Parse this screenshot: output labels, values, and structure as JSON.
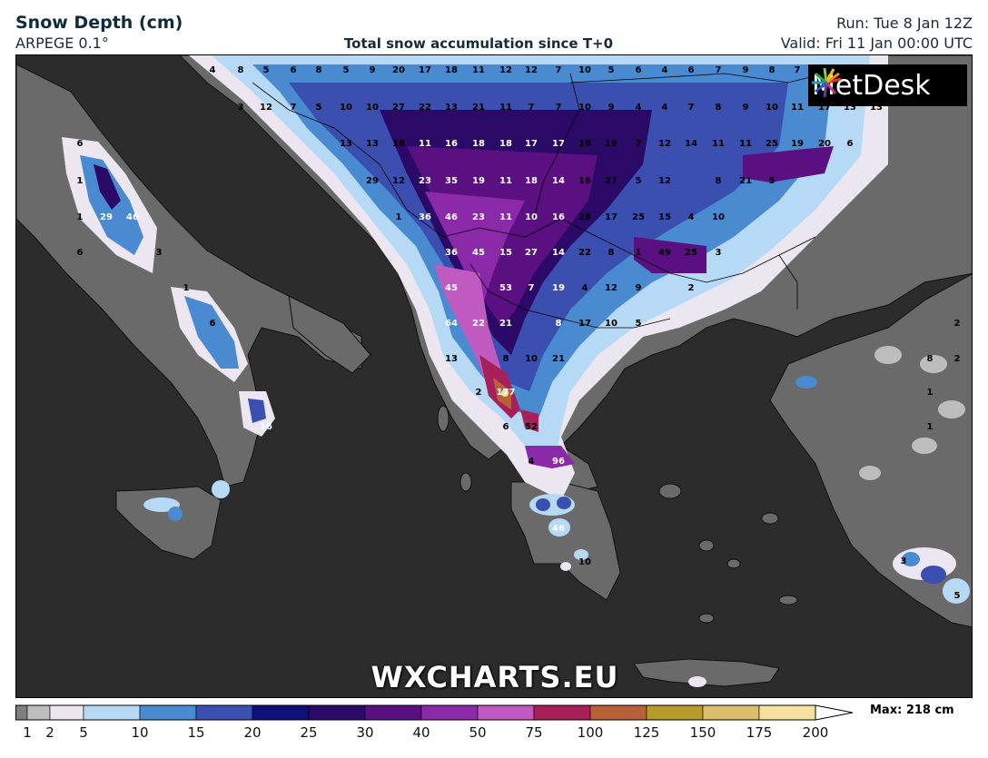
{
  "header": {
    "title": "Snow Depth (cm)",
    "model": "ARPEGE 0.1°",
    "subtitle": "Total snow accumulation since T+0",
    "run": "Run: Tue 8 Jan 12Z",
    "valid": "Valid: Fri 11 Jan 00:00 UTC"
  },
  "logo": {
    "text": "MetDesk"
  },
  "watermark": "WXCHARTS.EU",
  "legend": {
    "ticks": [
      "1",
      "2",
      "5",
      "10",
      "15",
      "20",
      "25",
      "30",
      "40",
      "50",
      "75",
      "100",
      "125",
      "150",
      "175",
      "200"
    ],
    "colors": [
      "#7f7f7f",
      "#bdbdbd",
      "#ebe6ef",
      "#b6d9f5",
      "#4a8ad0",
      "#3a4fb0",
      "#10107a",
      "#2a0a66",
      "#5a1080",
      "#8a2aa8",
      "#c05ac0",
      "#a8205a",
      "#b8603a",
      "#b89a2a",
      "#dcbe6a",
      "#f5e0a0"
    ],
    "max_label": "Max: 218 cm"
  },
  "map_labels": [
    "4",
    "8",
    "5",
    "6",
    "8",
    "5",
    "9",
    "20",
    "17",
    "18",
    "11",
    "12",
    "12",
    "7",
    "10",
    "5",
    "6",
    "4",
    "6",
    "7",
    "9",
    "8",
    "7",
    "3",
    "12",
    "7",
    "5",
    "10",
    "10",
    "27",
    "22",
    "13",
    "21",
    "11",
    "7",
    "7",
    "10",
    "9",
    "4",
    "4",
    "7",
    "8",
    "9",
    "10",
    "11",
    "17",
    "13",
    "13",
    "6",
    "13",
    "13",
    "18",
    "11",
    "16",
    "18",
    "18",
    "17",
    "17",
    "16",
    "19",
    "7",
    "12",
    "14",
    "11",
    "11",
    "25",
    "19",
    "20",
    "6",
    "1",
    "29",
    "12",
    "23",
    "35",
    "19",
    "11",
    "18",
    "14",
    "16",
    "27",
    "5",
    "12",
    "8",
    "21",
    "5",
    "1",
    "29",
    "46",
    "1",
    "36",
    "46",
    "23",
    "11",
    "10",
    "16",
    "28",
    "17",
    "25",
    "15",
    "4",
    "10",
    "6",
    "3",
    "36",
    "45",
    "15",
    "27",
    "14",
    "22",
    "8",
    "1",
    "49",
    "25",
    "3",
    "1",
    "45",
    "53",
    "7",
    "19",
    "4",
    "12",
    "9",
    "2",
    "6",
    "64",
    "22",
    "21",
    "8",
    "17",
    "10",
    "5",
    "2",
    "13",
    "8",
    "10",
    "21",
    "8",
    "2",
    "2",
    "177",
    "1",
    "16",
    "6",
    "52",
    "1",
    "4",
    "96",
    "46",
    "10",
    "3",
    "5"
  ]
}
